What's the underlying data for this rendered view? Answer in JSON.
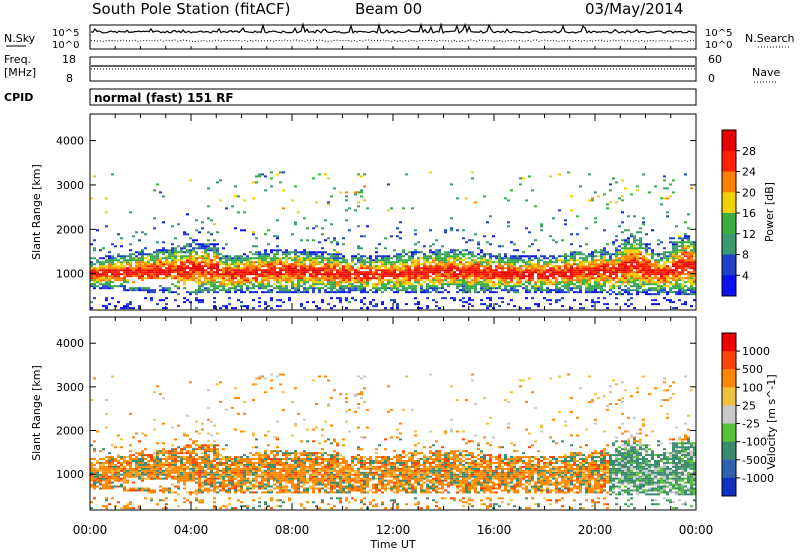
{
  "header": {
    "station": "South Pole Station (fitACF)",
    "beam": "Beam 00",
    "date": "03/May/2014"
  },
  "noise_panel": {
    "left_label": "N.Sky",
    "right_label": "N.Search",
    "left_top": "10^5",
    "left_bottom": "10^0",
    "right_top": "10^5",
    "right_bottom": "10^0"
  },
  "freq_panel": {
    "freq_label": "Freq.",
    "freq_unit": "[MHz]",
    "freq_top": "18",
    "freq_bottom": "8",
    "nave_label": "Nave",
    "nave_top": "60",
    "nave_bottom": "0"
  },
  "cpid_panel": {
    "label": "CPID",
    "text": "normal (fast) 151 RF"
  },
  "x_axis": {
    "label": "Time UT",
    "ticks": [
      "00:00",
      "04:00",
      "08:00",
      "12:00",
      "16:00",
      "20:00",
      "00:00"
    ]
  },
  "chart_data": [
    {
      "type": "heatmap",
      "quantity": "Power",
      "xlabel": "Time UT",
      "ylabel": "Slant Range [km]",
      "x_ticks": [
        "00:00",
        "04:00",
        "08:00",
        "12:00",
        "16:00",
        "20:00",
        "00:00"
      ],
      "y_ticks": [
        1000,
        2000,
        3000,
        4000
      ],
      "ylim": [
        180,
        4600
      ],
      "colorbar": {
        "label": "Power [dB]",
        "tick_labels": [
          "4",
          "8",
          "12",
          "16",
          "20",
          "24",
          "28"
        ],
        "colors": [
          "#0a10f0",
          "#2040c8",
          "#3a9a6e",
          "#38b040",
          "#f0d000",
          "#ff8000",
          "#ff2000",
          "#e80000"
        ]
      },
      "features": [
        {
          "time_range": "00:00-04:00",
          "range_km": [
            650,
            1450
          ],
          "description_values": "strong echoes"
        },
        {
          "time_range": "05:00-20:30",
          "range_km": [
            500,
            1500
          ],
          "description_values": "strong echoes"
        }
      ]
    },
    {
      "type": "heatmap",
      "quantity": "Velocity",
      "xlabel": "Time UT",
      "ylabel": "Slant Range [km]",
      "x_ticks": [
        "00:00",
        "04:00",
        "08:00",
        "12:00",
        "16:00",
        "20:00",
        "00:00"
      ],
      "y_ticks": [
        1000,
        2000,
        3000,
        4000
      ],
      "ylim": [
        180,
        4600
      ],
      "colorbar": {
        "label": "Velocity [m s^-1]",
        "tick_labels": [
          "1000",
          "500",
          "100",
          "25",
          "-25",
          "-100",
          "-500",
          "-1000"
        ],
        "colors": [
          "#1030c0",
          "#3060b0",
          "#3a8a6e",
          "#58c038",
          "#c8c8c8",
          "#f0c040",
          "#ff8800",
          "#ff4400",
          "#ee0000"
        ]
      }
    }
  ]
}
